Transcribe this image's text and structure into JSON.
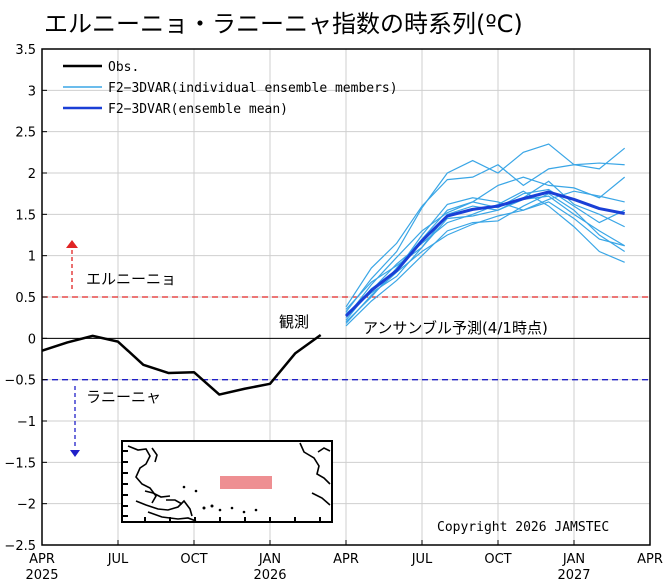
{
  "chart_data": {
    "type": "line",
    "title": "エルニーニョ・ラニーニャ指数の時系列(ºC)",
    "ylim": [
      -2.5,
      3.5
    ],
    "y_ticks": [
      "3.5",
      "3",
      "2.5",
      "2",
      "1.5",
      "1",
      "0.5",
      "0",
      "−0.5",
      "−1",
      "−1.5",
      "−2",
      "−2.5"
    ],
    "y_tick_values": [
      3.5,
      3,
      2.5,
      2,
      1.5,
      1,
      0.5,
      0,
      -0.5,
      -1,
      -1.5,
      -2,
      -2.5
    ],
    "xlim": [
      0,
      24
    ],
    "x_ticks": [
      {
        "m": 0,
        "label": "APR",
        "year": "2025"
      },
      {
        "m": 3,
        "label": "JUL",
        "year": ""
      },
      {
        "m": 6,
        "label": "OCT",
        "year": ""
      },
      {
        "m": 9,
        "label": "JAN",
        "year": "2026"
      },
      {
        "m": 12,
        "label": "APR",
        "year": ""
      },
      {
        "m": 15,
        "label": "JUL",
        "year": ""
      },
      {
        "m": 18,
        "label": "OCT",
        "year": ""
      },
      {
        "m": 21,
        "label": "JAN",
        "year": "2027"
      },
      {
        "m": 24,
        "label": "APR",
        "year": ""
      }
    ],
    "legend": [
      {
        "name": "Obs.",
        "color": "#000000"
      },
      {
        "name": "F2−3DVAR(individual ensemble members)",
        "color": "#3aa6e6"
      },
      {
        "name": "F2−3DVAR(ensemble mean)",
        "color": "#1a3fd6"
      }
    ],
    "thresholds": {
      "el_nino": {
        "value": 0.5,
        "label": "エルニーニョ",
        "color": "#e02424"
      },
      "la_nina": {
        "value": -0.5,
        "label": "ラニーニャ",
        "color": "#2020c8"
      }
    },
    "annotations": {
      "observed": "観測",
      "forecast": "アンサンブル予測(4/1時点)",
      "copyright": "Copyright 2026 JAMSTEC"
    },
    "series": [
      {
        "name": "Obs.",
        "x": [
          0,
          1,
          2,
          3,
          4,
          5,
          6,
          7,
          8,
          9,
          10,
          11
        ],
        "values": [
          -0.15,
          -0.05,
          0.03,
          -0.04,
          -0.32,
          -0.42,
          -0.41,
          -0.68,
          -0.61,
          -0.55,
          -0.18,
          0.04
        ]
      },
      {
        "name": "F2−3DVAR(ensemble mean)",
        "x": [
          12,
          13,
          14,
          15,
          16,
          17,
          18,
          19,
          20,
          21,
          22,
          23
        ],
        "values": [
          0.27,
          0.58,
          0.82,
          1.18,
          1.48,
          1.56,
          1.6,
          1.69,
          1.77,
          1.68,
          1.57,
          1.51
        ]
      }
    ],
    "members": {
      "x": [
        12,
        13,
        14,
        15,
        16,
        17,
        18,
        19,
        20,
        21,
        22,
        23
      ],
      "values": [
        [
          0.32,
          0.72,
          1.05,
          1.58,
          2.0,
          2.15,
          2.0,
          2.25,
          2.35,
          2.1,
          2.05,
          2.3
        ],
        [
          0.38,
          0.85,
          1.15,
          1.6,
          1.92,
          1.95,
          2.1,
          1.85,
          2.05,
          2.1,
          2.12,
          2.1
        ],
        [
          0.25,
          0.65,
          0.98,
          1.3,
          1.52,
          1.65,
          1.85,
          1.95,
          1.85,
          1.82,
          1.7,
          1.95
        ],
        [
          0.2,
          0.5,
          0.85,
          1.2,
          1.55,
          1.65,
          1.58,
          1.75,
          1.8,
          1.6,
          1.4,
          1.55
        ],
        [
          0.3,
          0.55,
          0.75,
          1.1,
          1.45,
          1.48,
          1.55,
          1.68,
          1.72,
          1.5,
          1.3,
          1.12
        ],
        [
          0.15,
          0.45,
          0.7,
          1.0,
          1.3,
          1.4,
          1.42,
          1.6,
          1.75,
          1.55,
          1.25,
          1.05
        ],
        [
          0.22,
          0.6,
          0.82,
          1.25,
          1.62,
          1.7,
          1.65,
          1.55,
          1.68,
          1.78,
          1.72,
          1.65
        ],
        [
          0.28,
          0.58,
          0.9,
          1.15,
          1.4,
          1.5,
          1.62,
          1.78,
          1.6,
          1.35,
          1.05,
          0.92
        ],
        [
          0.35,
          0.68,
          0.88,
          1.1,
          1.5,
          1.6,
          1.55,
          1.7,
          1.9,
          1.62,
          1.5,
          1.35
        ],
        [
          0.18,
          0.52,
          0.8,
          1.05,
          1.25,
          1.38,
          1.48,
          1.55,
          1.65,
          1.45,
          1.2,
          1.12
        ]
      ]
    }
  }
}
